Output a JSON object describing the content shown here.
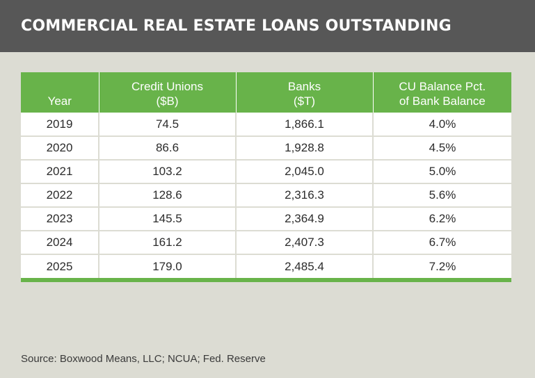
{
  "header": {
    "title": "COMMERCIAL REAL ESTATE LOANS OUTSTANDING"
  },
  "table": {
    "columns": [
      [
        "Year"
      ],
      [
        "Credit Unions",
        "($B)"
      ],
      [
        "Banks",
        "($T)"
      ],
      [
        "CU Balance Pct.",
        "of Bank Balance"
      ]
    ],
    "rows": [
      [
        "2019",
        "74.5",
        "1,866.1",
        "4.0%"
      ],
      [
        "2020",
        "86.6",
        "1,928.8",
        "4.5%"
      ],
      [
        "2021",
        "103.2",
        "2,045.0",
        "5.0%"
      ],
      [
        "2022",
        "128.6",
        "2,316.3",
        "5.6%"
      ],
      [
        "2023",
        "145.5",
        "2,364.9",
        "6.2%"
      ],
      [
        "2024",
        "161.2",
        "2,407.3",
        "6.7%"
      ],
      [
        "2025",
        "179.0",
        "2,485.4",
        "7.2%"
      ]
    ]
  },
  "chart_data": {
    "type": "table",
    "title": "COMMERCIAL REAL ESTATE LOANS OUTSTANDING",
    "categories": [
      "2019",
      "2020",
      "2021",
      "2022",
      "2023",
      "2024",
      "2025"
    ],
    "series": [
      {
        "name": "Credit Unions ($B)",
        "values": [
          74.5,
          86.6,
          103.2,
          128.6,
          145.5,
          161.2,
          179.0
        ]
      },
      {
        "name": "Banks ($T)",
        "values": [
          1866.1,
          1928.8,
          2045.0,
          2316.3,
          2364.9,
          2407.3,
          2485.4
        ]
      },
      {
        "name": "CU Balance Pct. of Bank Balance",
        "values": [
          4.0,
          4.5,
          5.0,
          5.6,
          6.2,
          6.7,
          7.2
        ]
      }
    ]
  },
  "footer": {
    "source": "Source: Boxwood Means, LLC; NCUA; Fed. Reserve"
  },
  "colors": {
    "background": "#dcdcd3",
    "header_bg": "#575757",
    "accent_green": "#68b34a",
    "cell_bg": "#ffffff"
  }
}
